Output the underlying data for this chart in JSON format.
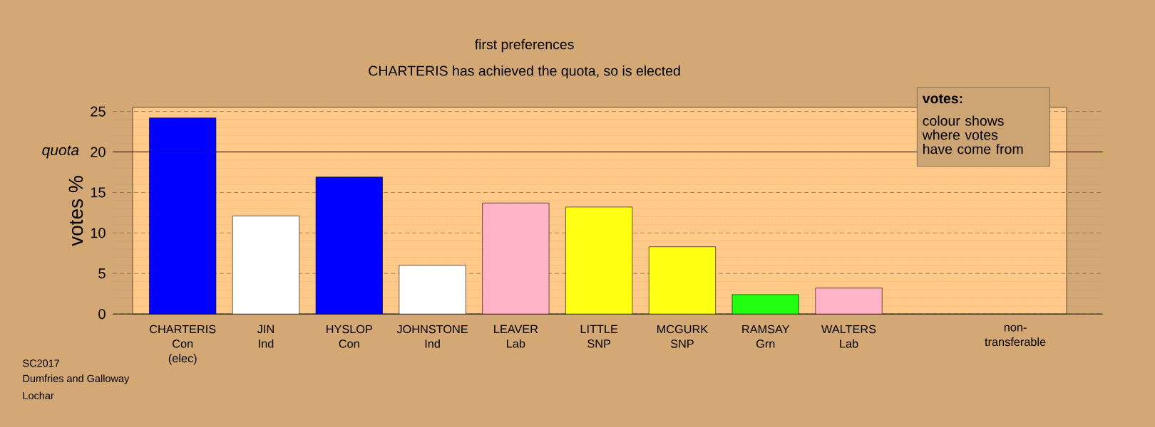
{
  "chart_data": {
    "type": "bar",
    "title": "first preferences",
    "subtitle": "CHARTERIS has achieved the quota, so is elected",
    "ylabel": "votes %",
    "categories": [
      "CHARTERIS Con (elec)",
      "JIN Ind",
      "HYSLOP Con",
      "JOHNSTONE Ind",
      "LEAVER Lab",
      "LITTLE SNP",
      "MCGURK SNP",
      "RAMSAY Grn",
      "WALTERS Lab",
      null,
      "non-transferable"
    ],
    "values": [
      24.2,
      12.1,
      16.9,
      6.0,
      13.7,
      13.2,
      8.3,
      2.4,
      3.2,
      null,
      null
    ],
    "colors": [
      "#0000ff",
      "#ffffff",
      "#0000ff",
      "#ffffff",
      "#ffb3c6",
      "#ffff14",
      "#ffff14",
      "#22ff11",
      "#ffb3c6",
      null,
      null
    ],
    "ylim": [
      0,
      25.5
    ],
    "yticks": [
      0,
      5,
      10,
      15,
      20,
      25
    ],
    "grid": "y",
    "ref_lines": [
      {
        "axis": "y",
        "value": 20,
        "label": "quota",
        "color": "#000000",
        "line_style": "solid"
      }
    ],
    "annotations": [
      "SC2017",
      "Dumfries and Galloway",
      "Lochar",
      "votes:",
      "colour shows where votes have come from"
    ]
  }
}
